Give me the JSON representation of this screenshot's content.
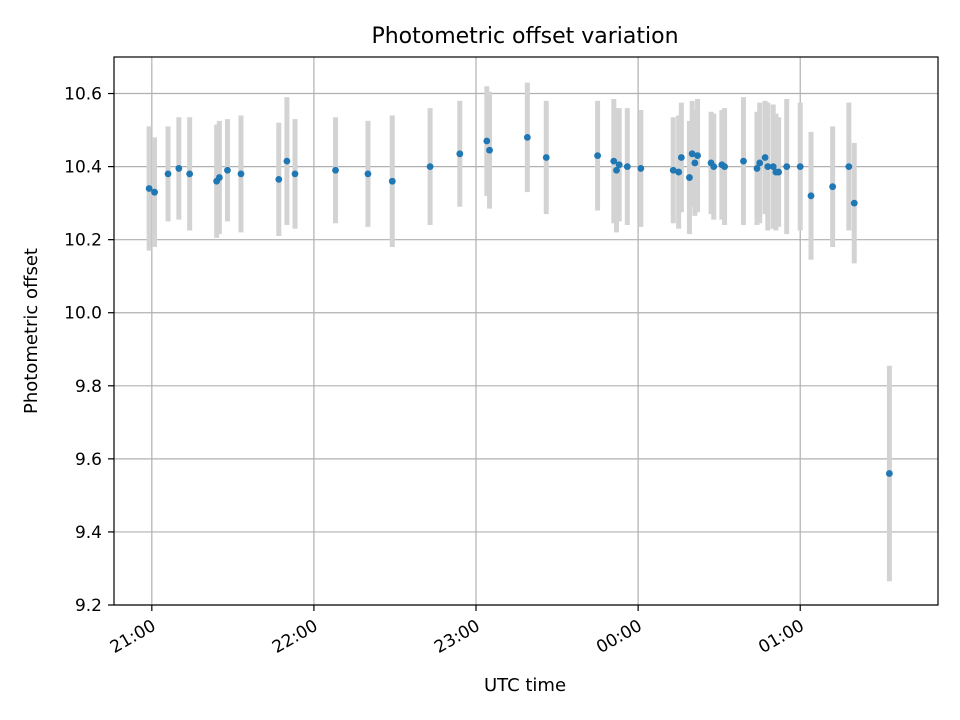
{
  "chart_data": {
    "type": "scatter",
    "title": "Photometric offset variation",
    "xlabel": "UTC time",
    "ylabel": "Photometric offset",
    "ylim": [
      9.2,
      10.7
    ],
    "xlim": [
      "20:46",
      "01:51"
    ],
    "grid": true,
    "x_ticks": [
      "21:00",
      "22:00",
      "23:00",
      "00:00",
      "01:00"
    ],
    "y_ticks": [
      "9.2",
      "9.4",
      "9.6",
      "9.8",
      "10.0",
      "10.2",
      "10.4",
      "10.6"
    ],
    "colors": {
      "point": "#1f77b4",
      "errorbar": "#d3d3d3",
      "grid": "#b0b0b0",
      "axis": "#000000"
    },
    "series": [
      {
        "x": [
          "20:59",
          "21:01",
          "21:06",
          "21:10",
          "21:14",
          "21:24",
          "21:25",
          "21:28",
          "21:33",
          "21:47",
          "21:50",
          "21:53",
          "22:08",
          "22:20",
          "22:29",
          "22:43",
          "22:54",
          "23:04",
          "23:05",
          "23:19",
          "23:26",
          "23:45",
          "23:51",
          "23:52",
          "23:53",
          "23:56",
          "00:01",
          "00:13",
          "00:15",
          "00:16",
          "00:19",
          "00:20",
          "00:21",
          "00:22",
          "00:27",
          "00:28",
          "00:31",
          "00:32",
          "00:39",
          "00:44",
          "00:45",
          "00:47",
          "00:48",
          "00:50",
          "00:51",
          "00:52",
          "00:55",
          "01:00",
          "01:04",
          "01:12",
          "01:18",
          "01:20",
          "01:33"
        ],
        "y": [
          10.34,
          10.33,
          10.38,
          10.395,
          10.38,
          10.36,
          10.37,
          10.39,
          10.38,
          10.365,
          10.415,
          10.38,
          10.39,
          10.38,
          10.36,
          10.4,
          10.435,
          10.47,
          10.445,
          10.48,
          10.425,
          10.43,
          10.415,
          10.39,
          10.405,
          10.4,
          10.395,
          10.39,
          10.385,
          10.425,
          10.37,
          10.435,
          10.41,
          10.43,
          10.41,
          10.4,
          10.405,
          10.4,
          10.415,
          10.395,
          10.41,
          10.425,
          10.4,
          10.4,
          10.385,
          10.385,
          10.4,
          10.4,
          10.32,
          10.345,
          10.4,
          10.3,
          9.56
        ],
        "yerr": [
          0.17,
          0.15,
          0.13,
          0.14,
          0.155,
          0.155,
          0.155,
          0.14,
          0.16,
          0.155,
          0.175,
          0.15,
          0.145,
          0.145,
          0.18,
          0.16,
          0.145,
          0.15,
          0.16,
          0.15,
          0.155,
          0.15,
          0.17,
          0.17,
          0.155,
          0.16,
          0.16,
          0.145,
          0.155,
          0.15,
          0.155,
          0.145,
          0.145,
          0.155,
          0.14,
          0.145,
          0.15,
          0.16,
          0.175,
          0.155,
          0.165,
          0.155,
          0.175,
          0.17,
          0.16,
          0.15,
          0.185,
          0.175,
          0.175,
          0.165,
          0.175,
          0.165,
          0.295
        ]
      }
    ]
  }
}
